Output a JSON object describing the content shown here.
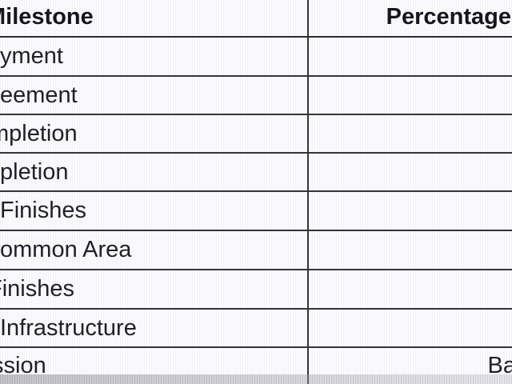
{
  "table": {
    "header": {
      "milestone_cut": "M",
      "milestone_visible": "ilestone",
      "percentage": "Percentage"
    },
    "rows": [
      {
        "milestone_cut": "",
        "milestone_visible": "yment",
        "percentage": ""
      },
      {
        "milestone_cut": "",
        "milestone_visible": "eement",
        "percentage": ""
      },
      {
        "milestone_cut": "m",
        "milestone_visible": "pletion",
        "percentage": ""
      },
      {
        "milestone_cut": "",
        "milestone_visible": "pletion",
        "percentage": ""
      },
      {
        "milestone_cut": "",
        "milestone_visible": "Finishes",
        "percentage": ""
      },
      {
        "milestone_cut": "",
        "milestone_visible": "ommon Area",
        "percentage": ""
      },
      {
        "milestone_cut": "F",
        "milestone_visible": "inishes",
        "percentage": ""
      },
      {
        "milestone_cut": "",
        "milestone_visible": "Infrastructure",
        "percentage": ""
      },
      {
        "milestone_cut": "s",
        "milestone_visible": "sion",
        "percentage": "Ba"
      }
    ]
  },
  "colors": {
    "text": "#20202b",
    "header_text": "#15151f",
    "grid_line": "#343438",
    "background": "#fbfbfd",
    "page_edge_shadow": "#8c8c96"
  }
}
